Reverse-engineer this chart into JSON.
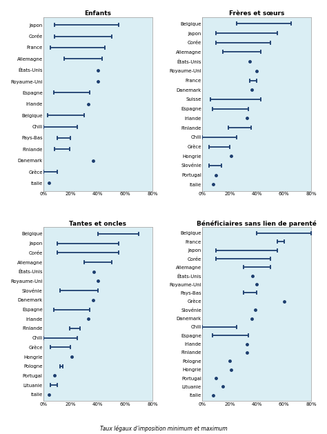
{
  "panels": [
    {
      "title": "Enfants",
      "countries": [
        "Japon",
        "Corée",
        "France",
        "Allemagne",
        "États-Unis",
        "Royaume-Uni",
        "Espagne",
        "Irlande",
        "Belgique",
        "Chili",
        "Pays-Bas",
        "Finlande",
        "Danemark",
        "Grèce",
        "Italie"
      ],
      "min_vals": [
        8,
        8,
        5,
        15,
        40,
        40,
        7.65,
        33,
        3,
        0,
        10,
        8,
        36.25,
        0,
        4
      ],
      "max_vals": [
        55,
        50,
        45,
        43,
        40,
        40,
        34,
        33,
        30,
        25,
        20,
        19,
        36.25,
        10,
        4
      ]
    },
    {
      "title": "Frères et sœurs",
      "countries": [
        "Belgique",
        "Japon",
        "Corée",
        "Allemagne",
        "États-Unis",
        "Royaume-Uni",
        "France",
        "Danemark",
        "Suisse",
        "Espagne",
        "Irlande",
        "Finlande",
        "Chili",
        "Grèce",
        "Hongrie",
        "Slovénie",
        "Portugal",
        "Italie"
      ],
      "min_vals": [
        25,
        10,
        10,
        15,
        35,
        40,
        35,
        36.25,
        6,
        7.65,
        33,
        19,
        0,
        5,
        21,
        5,
        10,
        8
      ],
      "max_vals": [
        65,
        55,
        50,
        43,
        35,
        40,
        40,
        36.25,
        43,
        34,
        33,
        36,
        25,
        20,
        21,
        14,
        10,
        8
      ]
    },
    {
      "title": "Tantes et oncles",
      "countries": [
        "Belgique",
        "Japon",
        "Corée",
        "Allemagne",
        "États-Unis",
        "Royaume-Uni",
        "Slovénie",
        "Danemark",
        "Espagne",
        "Irlande",
        "Finlande",
        "Chili",
        "Grèce",
        "Hongrie",
        "Pologne",
        "Portugal",
        "Lituanie",
        "Italie"
      ],
      "min_vals": [
        40,
        10,
        10,
        30,
        37,
        40,
        12,
        36.25,
        7.65,
        33,
        19,
        0,
        5,
        21,
        12,
        8,
        5,
        4
      ],
      "max_vals": [
        70,
        55,
        55,
        50,
        37,
        40,
        40,
        36.25,
        34,
        33,
        27,
        25,
        20,
        21,
        14,
        8,
        10,
        4
      ]
    },
    {
      "title": "Bénéficiaires sans lien de parenté",
      "countries": [
        "Belgique",
        "France",
        "Japon",
        "Corée",
        "Allemagne",
        "États-Unis",
        "Royaume-Uni",
        "Pays-Bas",
        "Grèce",
        "Slovénie",
        "Danemark",
        "Chili",
        "Espagne",
        "Irlande",
        "Finlande",
        "Pologne",
        "Hongrie",
        "Portugal",
        "Lituanie",
        "Italie"
      ],
      "min_vals": [
        40,
        55,
        10,
        10,
        30,
        37,
        40,
        30,
        60,
        39,
        36.25,
        0,
        7.65,
        33,
        33,
        20,
        21,
        10,
        15,
        8
      ],
      "max_vals": [
        80,
        60,
        55,
        50,
        50,
        37,
        40,
        40,
        60,
        39,
        36.25,
        25,
        34,
        33,
        33,
        20,
        21,
        10,
        15,
        8
      ]
    }
  ],
  "xlabel": "Taux légaux d’imposition minimum et maximum",
  "xlim": [
    0,
    80
  ],
  "xticks": [
    0,
    20,
    40,
    60,
    80
  ],
  "xticklabels": [
    "0%",
    "20%",
    "40%",
    "60%",
    "80%"
  ],
  "line_color": "#1c3d6e",
  "dot_color": "#1c3d6e",
  "bg_color": "#daeef4",
  "fig_bg": "#ffffff",
  "border_color": "#aaaaaa"
}
